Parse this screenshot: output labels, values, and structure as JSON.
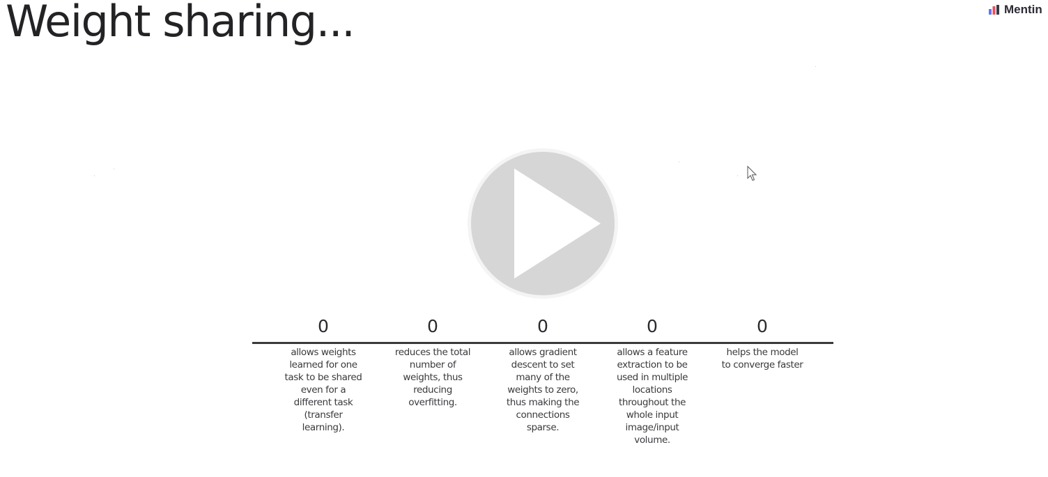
{
  "slide": {
    "title": "Weight sharing..."
  },
  "brand": {
    "name": "Mentin",
    "icon": "mentimeter-logo-icon",
    "colors": [
      "#5d78f5",
      "#e9525f",
      "#3b3b46"
    ]
  },
  "player": {
    "icon": "play-icon",
    "color": "#d6d6d6"
  },
  "cursor": {
    "icon": "mouse-pointer-icon"
  },
  "chart_data": {
    "type": "bar",
    "categories": [
      "allows weights learned for one task to be shared even for a different task (transfer learning).",
      "reduces the total number of weights, thus reducing overfitting.",
      "allows gradient descent to set many of the weights to zero, thus making the connections sparse.",
      "allows a feature extraction to be used in multiple locations throughout the whole input image/input volume.",
      "helps the model to converge faster"
    ],
    "values": [
      0,
      0,
      0,
      0,
      0
    ],
    "value_labels": [
      "0",
      "0",
      "0",
      "0",
      "0"
    ],
    "title": "",
    "xlabel": "",
    "ylabel": "",
    "grid": false,
    "baseline_color": "#3a3a3d"
  }
}
